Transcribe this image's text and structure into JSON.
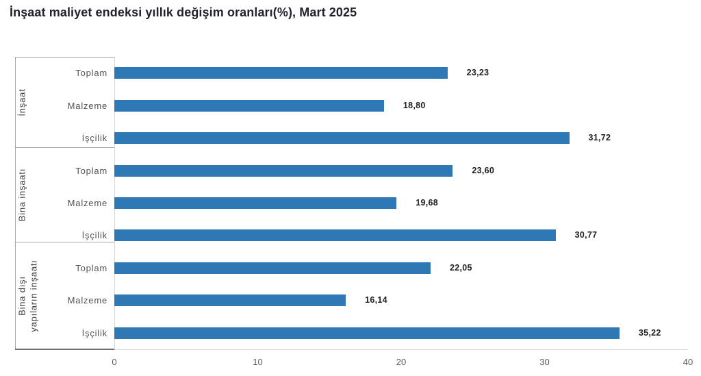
{
  "title": "İnşaat maliyet endeksi yıllık değişim oranları(%), Mart 2025",
  "chart_data": {
    "type": "bar",
    "orientation": "horizontal",
    "title": "İnşaat maliyet endeksi yıllık değişim oranları(%), Mart 2025",
    "xlabel": "",
    "ylabel": "",
    "xlim": [
      0,
      40
    ],
    "x_ticks": [
      "0",
      "10",
      "20",
      "30",
      "40"
    ],
    "grid": false,
    "legend": "none",
    "value_decimal_separator": ",",
    "groups": [
      {
        "label": "İnşaat",
        "label_lines": [
          "İnşaat"
        ],
        "bars": [
          {
            "category": "Toplam",
            "value": 23.23,
            "label": "23,23"
          },
          {
            "category": "Malzeme",
            "value": 18.8,
            "label": "18,80"
          },
          {
            "category": "İşçilik",
            "value": 31.72,
            "label": "31,72"
          }
        ]
      },
      {
        "label": "Bina inşaatı",
        "label_lines": [
          "Bina inşaatı"
        ],
        "bars": [
          {
            "category": "Toplam",
            "value": 23.6,
            "label": "23,60"
          },
          {
            "category": "Malzeme",
            "value": 19.68,
            "label": "19,68"
          },
          {
            "category": "İşçilik",
            "value": 30.77,
            "label": "30,77"
          }
        ]
      },
      {
        "label": "Bina dışı yapıların inşaatı",
        "label_lines": [
          "Bina dışı",
          "yapıların inşaatı"
        ],
        "bars": [
          {
            "category": "Toplam",
            "value": 22.05,
            "label": "22,05"
          },
          {
            "category": "Malzeme",
            "value": 16.14,
            "label": "16,14"
          },
          {
            "category": "İşçilik",
            "value": 35.22,
            "label": "35,22"
          }
        ]
      }
    ]
  },
  "colors": {
    "bar": "#2E78B5",
    "title_text": "#23232e",
    "category_text": "#525252",
    "group_text": "#404040",
    "value_text": "#1f1f1f",
    "tick_text": "#595959",
    "group_line": "#a6a6a6",
    "category_baseline": "#6e6e6e",
    "plot_left_axis": "#c9d9e6",
    "plot_bottom_axis": "#d9d9d9",
    "background": "#ffffff"
  }
}
